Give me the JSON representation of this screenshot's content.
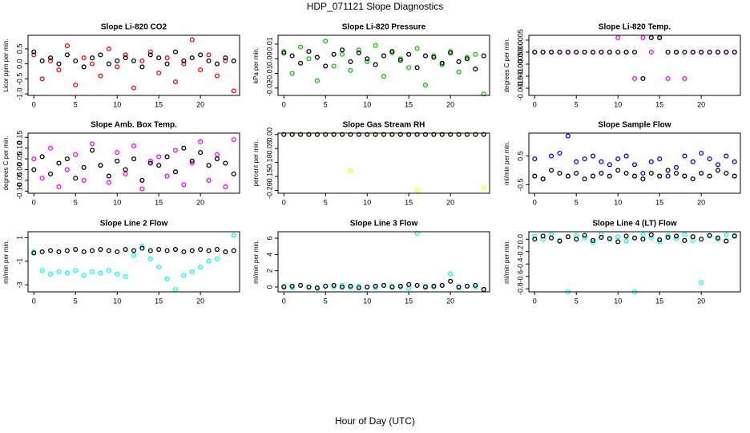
{
  "title": "HDP_071121  Slope Diagnostics",
  "xlabel": "Hour of Day (UTC)",
  "chart_data": [
    {
      "type": "scatter",
      "title": "Slope Li-820 CO2",
      "ylabel": "Licor ppm per min.",
      "x": [
        0,
        1,
        2,
        3,
        4,
        5,
        6,
        7,
        8,
        9,
        10,
        11,
        12,
        13,
        14,
        15,
        16,
        17,
        18,
        19,
        20,
        21,
        22,
        23,
        24
      ],
      "xlim": [
        -0.7,
        24.7
      ],
      "xticks": [
        0,
        5,
        10,
        15,
        20
      ],
      "ylim": [
        -1.05,
        0.95
      ],
      "yticks": [
        {
          "value": -1,
          "label": "-1.0"
        },
        -0.5,
        {
          "value": 0,
          "label": "0.0"
        },
        0.5
      ],
      "series": [
        {
          "color": "#ff0000",
          "values": [
            0.3,
            -0.5,
            0.1,
            -0.2,
            0.6,
            -0.7,
            0.2,
            0.0,
            -0.4,
            0.5,
            -0.1,
            0.3,
            -0.8,
            0.1,
            0.4,
            -0.3,
            0.2,
            -0.6,
            0.0,
            0.8,
            -0.2,
            0.3,
            -0.4,
            0.1,
            -0.9
          ]
        },
        {
          "color": "#000000",
          "values": [
            0.4,
            0.1,
            0.2,
            0.0,
            0.3,
            0.1,
            -0.1,
            0.2,
            0.3,
            0.0,
            0.1,
            0.2,
            0.1,
            -0.1,
            0.3,
            0.2,
            0.0,
            0.4,
            0.1,
            0.2,
            0.3,
            0.1,
            0.0,
            0.2,
            0.1
          ]
        }
      ]
    },
    {
      "type": "scatter",
      "title": "Slope Li-820 Pressure",
      "ylabel": "kPa per min.",
      "x": [
        0,
        1,
        2,
        3,
        4,
        5,
        6,
        7,
        8,
        9,
        10,
        11,
        12,
        13,
        14,
        15,
        16,
        17,
        18,
        19,
        20,
        21,
        22,
        23,
        24
      ],
      "xlim": [
        -0.7,
        24.7
      ],
      "xticks": [
        0,
        5,
        10,
        15,
        20
      ],
      "ylim": [
        -0.025,
        0.016
      ],
      "yticks": [
        -0.02,
        -0.01,
        {
          "value": 0,
          "label": "0.00"
        },
        0.01
      ],
      "series": [
        {
          "color": "#00cc00",
          "values": [
            0.005,
            -0.01,
            0.008,
            0.0,
            -0.015,
            0.012,
            -0.005,
            0.003,
            -0.008,
            0.006,
            -0.002,
            0.009,
            -0.012,
            0.004,
            0.0,
            -0.006,
            0.007,
            -0.018,
            0.002,
            -0.004,
            0.005,
            -0.009,
            0.001,
            0.003,
            -0.024
          ]
        },
        {
          "color": "#000000",
          "values": [
            0.004,
            0.002,
            -0.003,
            0.005,
            0.001,
            -0.005,
            0.003,
            0.006,
            -0.002,
            0.004,
            0.0,
            -0.004,
            0.002,
            0.005,
            -0.001,
            0.003,
            -0.006,
            0.002,
            0.001,
            -0.003,
            0.004,
            -0.002,
            0.0,
            -0.007,
            0.002
          ]
        }
      ]
    },
    {
      "type": "scatter",
      "title": "Slope Li-820 Temp.",
      "ylabel": "degrees C per min.",
      "x": [
        0,
        1,
        2,
        3,
        4,
        5,
        6,
        7,
        8,
        9,
        10,
        11,
        12,
        13,
        14,
        15,
        16,
        17,
        18,
        19,
        20,
        21,
        22,
        23,
        24
      ],
      "xlim": [
        -0.7,
        24.7
      ],
      "xticks": [
        0,
        5,
        10,
        15,
        20
      ],
      "ylim": [
        -0.0018,
        0.0007
      ],
      "yticks": [
        -0.0015,
        {
          "value": -0.001,
          "label": "-0.0010"
        },
        -0.0005,
        {
          "value": 0,
          "label": "0.0000"
        },
        0.0005
      ],
      "series": [
        {
          "color": "#ff00ff",
          "values": [
            0,
            0,
            0,
            0,
            0,
            0,
            0,
            0,
            0,
            0,
            0.0006,
            0,
            -0.0011,
            0.0006,
            0,
            0.0006,
            -0.0011,
            0,
            -0.0011,
            0,
            0,
            0,
            0,
            0,
            0
          ]
        },
        {
          "color": "#000000",
          "values": [
            0,
            0,
            0,
            0,
            0,
            0,
            0,
            0,
            0,
            0,
            0,
            0,
            0,
            -0.0011,
            0.0006,
            0.0006,
            0,
            0,
            0,
            0,
            0,
            0,
            0,
            0,
            0
          ]
        }
      ]
    },
    {
      "type": "scatter",
      "title": "Slope Amb. Box Temp.",
      "ylabel": "degrees C per min.",
      "x": [
        0,
        1,
        2,
        3,
        4,
        5,
        6,
        7,
        8,
        9,
        10,
        11,
        12,
        13,
        14,
        15,
        16,
        17,
        18,
        19,
        20,
        21,
        22,
        23,
        24
      ],
      "xlim": [
        -0.7,
        24.7
      ],
      "xticks": [
        0,
        5,
        10,
        15,
        20
      ],
      "ylim": [
        -0.11,
        0.17
      ],
      "yticks": [
        {
          "value": -0.1,
          "label": "-0.10"
        },
        -0.05,
        {
          "value": 0,
          "label": "0.00"
        },
        0.05,
        {
          "value": 0.1,
          "label": "0.10"
        },
        0.15
      ],
      "series": [
        {
          "color": "#ff00ff",
          "values": [
            0.05,
            -0.04,
            0.1,
            -0.08,
            0.0,
            0.07,
            -0.05,
            0.12,
            0.02,
            -0.06,
            0.08,
            -0.02,
            0.11,
            -0.09,
            0.04,
            0.06,
            -0.03,
            0.09,
            -0.07,
            0.03,
            0.13,
            -0.05,
            0.07,
            -0.08,
            0.14
          ]
        },
        {
          "color": "#000000",
          "values": [
            0.0,
            0.06,
            -0.02,
            0.03,
            0.05,
            -0.04,
            0.01,
            0.09,
            0.02,
            -0.03,
            0.04,
            0.0,
            0.05,
            -0.05,
            0.03,
            0.02,
            0.06,
            -0.01,
            0.1,
            0.04,
            0.08,
            0.02,
            0.05,
            0.03,
            -0.02
          ]
        }
      ]
    },
    {
      "type": "scatter",
      "title": "Slope Gas Stream RH",
      "ylabel": "percent per min.",
      "x": [
        0,
        1,
        2,
        3,
        4,
        5,
        6,
        7,
        8,
        9,
        10,
        11,
        12,
        13,
        14,
        15,
        16,
        17,
        18,
        19,
        20,
        21,
        22,
        23,
        24
      ],
      "xlim": [
        -0.7,
        24.7
      ],
      "xticks": [
        0,
        5,
        10,
        15,
        20
      ],
      "ylim": [
        -0.21,
        0.005
      ],
      "yticks": [
        {
          "value": -0.2,
          "label": "-0.20"
        },
        -0.15,
        {
          "value": -0.1,
          "label": "-0.10"
        },
        -0.05,
        {
          "value": 0,
          "label": "0.00"
        }
      ],
      "series": [
        {
          "color": "#ffff00",
          "values": [
            0,
            0,
            0,
            0,
            0,
            0,
            0,
            0,
            -0.13,
            0,
            0,
            0,
            0,
            0,
            0,
            0,
            -0.2,
            0,
            0,
            0,
            0,
            0,
            0,
            0,
            -0.19
          ]
        },
        {
          "color": "#000000",
          "values": [
            0,
            0,
            0,
            0,
            0,
            0,
            0,
            0,
            0,
            0,
            0,
            0,
            0,
            0,
            0,
            0,
            0,
            0,
            0,
            0,
            0,
            0,
            0,
            0,
            0
          ]
        }
      ]
    },
    {
      "type": "scatter",
      "title": "Slope Sample Flow",
      "ylabel": "ml/min per min.",
      "x": [
        0,
        1,
        2,
        3,
        4,
        5,
        6,
        7,
        8,
        9,
        10,
        11,
        12,
        13,
        14,
        15,
        16,
        17,
        18,
        19,
        20,
        21,
        22,
        23,
        24
      ],
      "xlim": [
        -0.7,
        24.7
      ],
      "xticks": [
        0,
        5,
        10,
        15,
        20
      ],
      "ylim": [
        -0.8,
        1.3
      ],
      "yticks": [
        -0.5,
        0.5
      ],
      "series": [
        {
          "color": "#0000ff",
          "values": [
            0.4,
            -0.3,
            0.5,
            0.6,
            1.2,
            0.3,
            0.4,
            0.5,
            0.3,
            0.2,
            0.4,
            0.5,
            0.2,
            -0.1,
            0.3,
            0.4,
            -0.2,
            0.1,
            0.5,
            0.3,
            0.6,
            0.4,
            0.2,
            0.5,
            0.3
          ]
        },
        {
          "color": "#000000",
          "values": [
            -0.2,
            -0.3,
            0.0,
            -0.1,
            -0.2,
            -0.1,
            -0.3,
            -0.2,
            -0.1,
            -0.2,
            0.0,
            -0.1,
            -0.2,
            -0.3,
            -0.1,
            -0.2,
            0.0,
            -0.1,
            -0.2,
            -0.3,
            -0.1,
            -0.2,
            0.0,
            -0.1,
            -0.2
          ]
        }
      ]
    },
    {
      "type": "scatter",
      "title": "Slope Line 2 Flow",
      "ylabel": "ml/min per min.",
      "x": [
        0,
        1,
        2,
        3,
        4,
        5,
        6,
        7,
        8,
        9,
        10,
        11,
        12,
        13,
        14,
        15,
        16,
        17,
        18,
        19,
        20,
        21,
        22,
        23,
        24
      ],
      "xlim": [
        -0.7,
        24.7
      ],
      "xticks": [
        0,
        5,
        10,
        15,
        20
      ],
      "ylim": [
        -3.6,
        1.5
      ],
      "yticks": [
        -3,
        -1,
        1
      ],
      "series": [
        {
          "color": "#00ffff",
          "values": [
            -0.2,
            -1.8,
            -2.1,
            -1.9,
            -2.0,
            -1.8,
            -2.2,
            -1.9,
            -2.0,
            -1.8,
            -2.1,
            -2.3,
            -0.5,
            0.3,
            -0.8,
            -1.5,
            -2.5,
            -3.4,
            -2.2,
            -1.9,
            -1.5,
            -1.0,
            -0.8,
            -0.2,
            1.2
          ]
        },
        {
          "color": "#000000",
          "values": [
            -0.3,
            -0.2,
            -0.1,
            -0.2,
            -0.1,
            0.0,
            -0.2,
            -0.1,
            0.0,
            -0.1,
            -0.2,
            0.0,
            -0.1,
            0.1,
            -0.1,
            0.0,
            -0.1,
            0.0,
            -0.2,
            -0.1,
            0.0,
            -0.1,
            0.0,
            -0.2,
            -0.1
          ]
        }
      ]
    },
    {
      "type": "scatter",
      "title": "Slope Line 3 Flow",
      "ylabel": "ml/min per min.",
      "x": [
        0,
        1,
        2,
        3,
        4,
        5,
        6,
        7,
        8,
        9,
        10,
        11,
        12,
        13,
        14,
        15,
        16,
        17,
        18,
        19,
        20,
        21,
        22,
        23,
        24
      ],
      "xlim": [
        -0.7,
        24.7
      ],
      "xticks": [
        0,
        5,
        10,
        15,
        20
      ],
      "ylim": [
        -0.6,
        6.8
      ],
      "yticks": [
        0,
        2,
        4,
        6
      ],
      "series": [
        {
          "color": "#00ffff",
          "values": [
            0.1,
            -0.1,
            0.2,
            0.0,
            -0.2,
            0.1,
            0.0,
            0.2,
            -0.1,
            0.1,
            0.0,
            -0.1,
            0.2,
            0.1,
            0.0,
            -0.2,
            6.6,
            0.1,
            0.0,
            0.2,
            1.6,
            -0.1,
            0.1,
            0.0,
            -0.3
          ]
        },
        {
          "color": "#000000",
          "values": [
            0.0,
            0.1,
            0.2,
            0.0,
            -0.1,
            0.1,
            0.2,
            0.0,
            0.1,
            -0.1,
            0.0,
            0.1,
            0.2,
            0.0,
            0.1,
            0.3,
            0.2,
            0.0,
            0.1,
            0.2,
            0.7,
            0.0,
            0.1,
            0.2,
            -0.3
          ]
        }
      ]
    },
    {
      "type": "scatter",
      "title": "Slope Line 4 (LT) Flow",
      "ylabel": "ml/min per min.",
      "x": [
        0,
        1,
        2,
        3,
        4,
        5,
        6,
        7,
        8,
        9,
        10,
        11,
        12,
        13,
        14,
        15,
        16,
        17,
        18,
        19,
        20,
        21,
        22,
        23,
        24
      ],
      "xlim": [
        -0.7,
        24.7
      ],
      "xticks": [
        0,
        5,
        10,
        15,
        20
      ],
      "ylim": [
        -0.85,
        0.12
      ],
      "yticks": [
        -0.8,
        -0.6,
        -0.4,
        -0.2,
        {
          "value": 0,
          "label": "0.0"
        }
      ],
      "series": [
        {
          "color": "#00ffff",
          "values": [
            0.05,
            0.0,
            0.08,
            -0.02,
            -0.85,
            0.06,
            0.02,
            -0.05,
            0.09,
            0.0,
            0.04,
            -0.03,
            -0.85,
            0.07,
            0.02,
            -0.04,
            0.06,
            0.01,
            0.08,
            -0.02,
            -0.7,
            0.05,
            0.0,
            0.07,
            0.06
          ]
        },
        {
          "color": "#000000",
          "values": [
            0.0,
            0.05,
            0.02,
            -0.03,
            0.04,
            0.0,
            0.06,
            -0.02,
            0.03,
            0.01,
            -0.04,
            0.05,
            0.02,
            0.0,
            0.07,
            -0.01,
            0.03,
            0.05,
            -0.02,
            0.04,
            0.0,
            0.06,
            0.02,
            -0.03,
            0.05
          ]
        }
      ]
    }
  ]
}
